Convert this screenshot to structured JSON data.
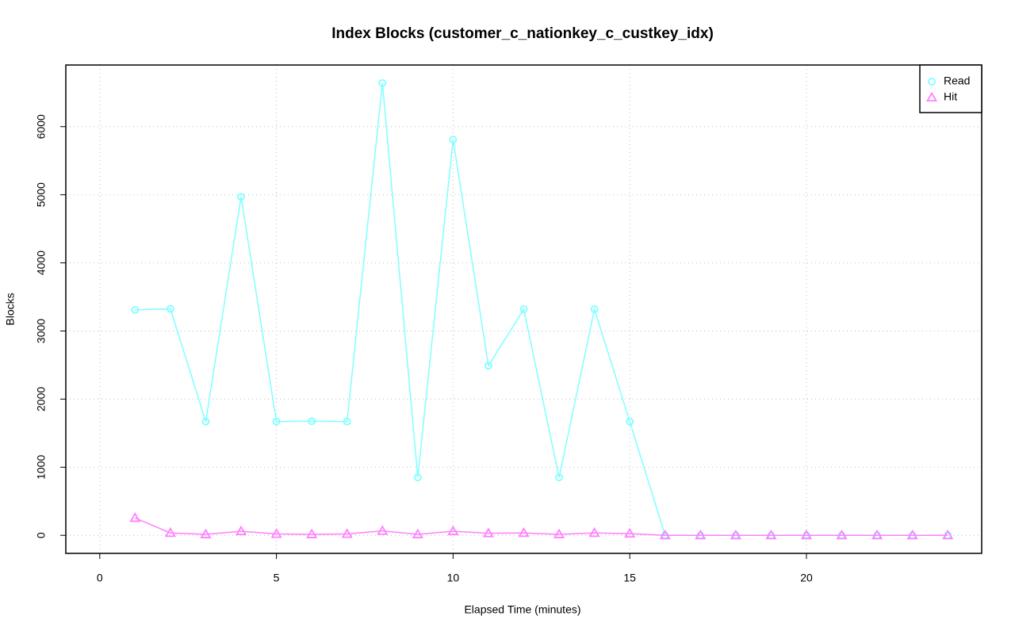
{
  "chart_data": {
    "type": "line",
    "title": "Index Blocks (customer_c_nationkey_c_custkey_idx)",
    "x_label": "Elapsed Time (minutes)",
    "y_label": "Blocks",
    "x": [
      1,
      2,
      3,
      4,
      5,
      6,
      7,
      8,
      9,
      10,
      11,
      12,
      13,
      14,
      15,
      16,
      17,
      18,
      19,
      20,
      21,
      22,
      23,
      24
    ],
    "series": [
      {
        "name": "Read",
        "color": "#80ffff",
        "marker": "circle",
        "values": [
          3310,
          3325,
          1670,
          4970,
          1670,
          1675,
          1670,
          6640,
          850,
          5810,
          2490,
          3320,
          850,
          3320,
          1670,
          0,
          0,
          0,
          0,
          0,
          0,
          0,
          0,
          0
        ]
      },
      {
        "name": "Hit",
        "color": "#ff80ff",
        "marker": "triangle",
        "values": [
          255,
          35,
          15,
          60,
          20,
          15,
          20,
          65,
          15,
          60,
          30,
          35,
          15,
          35,
          25,
          0,
          0,
          0,
          0,
          0,
          0,
          0,
          0,
          0
        ]
      }
    ],
    "xlim": [
      -0.96,
      24.96
    ],
    "xticks": [
      0,
      5,
      10,
      15,
      20
    ],
    "ylim": [
      -265,
      6905
    ],
    "yticks": [
      0,
      1000,
      2000,
      3000,
      4000,
      5000,
      6000
    ],
    "grid": true,
    "legend": "top-right"
  }
}
